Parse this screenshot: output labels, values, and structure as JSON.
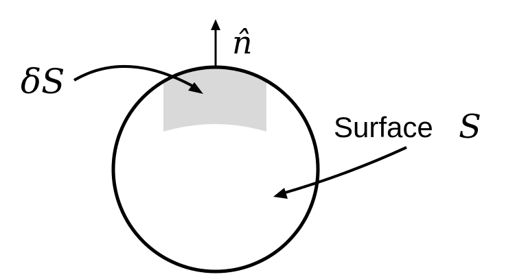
{
  "labels": {
    "surface_element": "δS",
    "normal_vector": "n̂",
    "surface_word": "Surface",
    "surface_symbol": "S"
  },
  "colors": {
    "stroke": "#000000",
    "patch_fill": "#d9d9d9",
    "background": "#ffffff"
  }
}
